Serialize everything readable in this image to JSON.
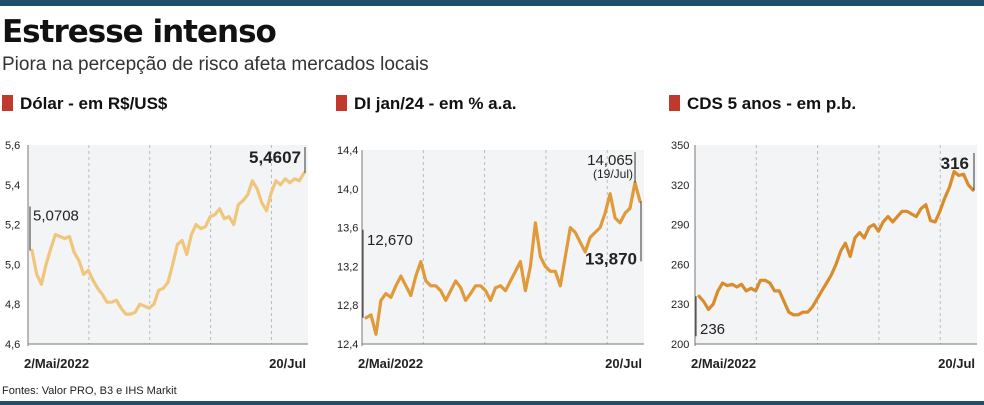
{
  "headline": "Estresse intenso",
  "subtitle": "Piora na percepção de risco afeta mercados locais",
  "source": "Fontes: Valor PRO, B3 e IHS Markit",
  "colors": {
    "frame": "#1f4e6e",
    "marker": "#c0392b",
    "plot_bg": "#f3f4f5",
    "grid": "#b9bcbf"
  },
  "chart_data": [
    {
      "type": "line",
      "title": "Dólar - em R$/US$",
      "color": "#f0c57c",
      "x_labels": [
        "2/Mai/2022",
        "20/Jul"
      ],
      "ylim": [
        4.6,
        5.6
      ],
      "yticks": [
        "5,6",
        "5,4",
        "5,2",
        "5,0",
        "4,8",
        "4,6"
      ],
      "ytick_values": [
        5.6,
        5.4,
        5.2,
        5.0,
        4.8,
        4.6
      ],
      "grid": "vertical dashed",
      "start_label": "5,0708",
      "end_label": "5,4607",
      "series": [
        {
          "values": [
            5.07,
            4.95,
            4.9,
            5.0,
            5.08,
            5.15,
            5.14,
            5.13,
            5.14,
            5.06,
            5.02,
            4.95,
            4.97,
            4.92,
            4.88,
            4.85,
            4.81,
            4.81,
            4.82,
            4.78,
            4.75,
            4.75,
            4.76,
            4.8,
            4.79,
            4.78,
            4.8,
            4.87,
            4.88,
            4.91,
            5.0,
            5.1,
            5.12,
            5.05,
            5.15,
            5.2,
            5.18,
            5.19,
            5.24,
            5.25,
            5.28,
            5.23,
            5.24,
            5.2,
            5.3,
            5.32,
            5.35,
            5.42,
            5.38,
            5.31,
            5.27,
            5.36,
            5.42,
            5.4,
            5.43,
            5.41,
            5.43,
            5.42,
            5.46
          ]
        }
      ]
    },
    {
      "type": "line",
      "title": "DI jan/24 - em % a.a.",
      "color": "#e09a3a",
      "x_labels": [
        "2/Mai/2022",
        "20/Jul"
      ],
      "ylim": [
        12.4,
        14.4
      ],
      "yticks": [
        "14,4",
        "14,0",
        "13,6",
        "13,2",
        "12,8",
        "12,4"
      ],
      "ytick_values": [
        14.4,
        14.0,
        13.6,
        13.2,
        12.8,
        12.4
      ],
      "grid": "vertical dashed",
      "start_label": "12,670",
      "peak_label": "14,065",
      "peak_date": "(19/Jul)",
      "end_label": "13,870",
      "series": [
        {
          "values": [
            12.67,
            12.7,
            12.5,
            12.85,
            12.92,
            12.88,
            13.0,
            13.1,
            13.0,
            12.9,
            13.1,
            13.25,
            13.05,
            13.0,
            13.0,
            12.95,
            12.85,
            12.95,
            13.05,
            12.98,
            12.85,
            12.92,
            13.0,
            13.0,
            12.95,
            12.85,
            12.98,
            13.0,
            12.95,
            13.05,
            13.15,
            13.25,
            12.95,
            13.2,
            13.65,
            13.3,
            13.2,
            13.15,
            13.15,
            13.0,
            13.3,
            13.6,
            13.55,
            13.45,
            13.35,
            13.5,
            13.55,
            13.6,
            13.75,
            13.95,
            13.7,
            13.65,
            13.75,
            13.8,
            14.065,
            13.87
          ]
        }
      ]
    },
    {
      "type": "line",
      "title": "CDS 5 anos - em p.b.",
      "color": "#d98c2b",
      "x_labels": [
        "2/Mai/2022",
        "20/Jul"
      ],
      "ylim": [
        200,
        350
      ],
      "yticks": [
        "350",
        "320",
        "290",
        "260",
        "230",
        "200"
      ],
      "ytick_values": [
        350,
        320,
        290,
        260,
        230,
        200
      ],
      "grid": "vertical dashed",
      "start_label": "236",
      "end_label": "316",
      "series": [
        {
          "values": [
            236,
            232,
            226,
            230,
            240,
            246,
            244,
            245,
            243,
            245,
            240,
            242,
            240,
            248,
            248,
            246,
            240,
            240,
            232,
            224,
            222,
            222,
            224,
            224,
            228,
            234,
            240,
            246,
            252,
            260,
            270,
            276,
            266,
            280,
            284,
            280,
            288,
            290,
            285,
            292,
            296,
            292,
            296,
            300,
            300,
            298,
            296,
            302,
            305,
            293,
            292,
            300,
            310,
            318,
            330,
            327,
            328,
            320,
            316
          ]
        }
      ]
    }
  ]
}
